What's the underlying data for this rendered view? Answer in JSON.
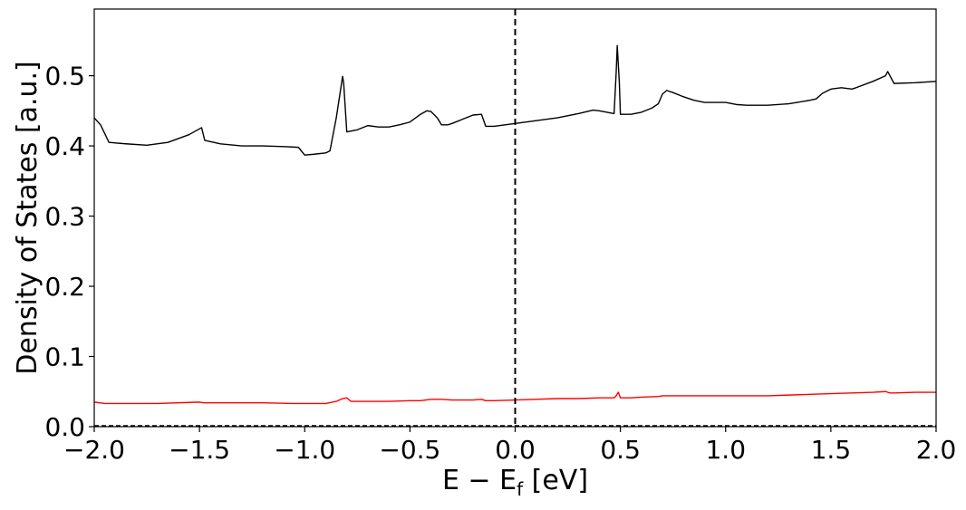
{
  "chart_data": {
    "type": "line",
    "title": "",
    "xlabel": "E − E",
    "xlabel_sub": "f",
    "xlabel_unit": " [eV]",
    "ylabel": "Density of States [a.u.]",
    "xlim": [
      -2.0,
      2.0
    ],
    "ylim": [
      0.0,
      0.595
    ],
    "xticks": [
      -2.0,
      -1.5,
      -1.0,
      -0.5,
      0.0,
      0.5,
      1.0,
      1.5,
      2.0
    ],
    "xtick_labels": [
      "−2.0",
      "−1.5",
      "−1.0",
      "−0.5",
      "0.0",
      "0.5",
      "1.0",
      "1.5",
      "2.0"
    ],
    "yticks": [
      0.0,
      0.1,
      0.2,
      0.3,
      0.4,
      0.5
    ],
    "ytick_labels": [
      "0.0",
      "0.1",
      "0.2",
      "0.3",
      "0.4",
      "0.5"
    ],
    "grid": false,
    "vline": {
      "x": 0.0,
      "style": "dashed",
      "color": "#000000"
    },
    "hline": {
      "y": 0.0,
      "style": "dashed",
      "color": "#000000"
    },
    "series": [
      {
        "color": "#000000",
        "x": [
          -2.0,
          -1.97,
          -1.93,
          -1.85,
          -1.75,
          -1.65,
          -1.55,
          -1.49,
          -1.475,
          -1.4,
          -1.3,
          -1.2,
          -1.1,
          -1.03,
          -1.0,
          -0.96,
          -0.9,
          -0.88,
          -0.85,
          -0.82,
          -0.815,
          -0.8,
          -0.75,
          -0.7,
          -0.65,
          -0.6,
          -0.55,
          -0.5,
          -0.45,
          -0.42,
          -0.4,
          -0.37,
          -0.35,
          -0.32,
          -0.3,
          -0.25,
          -0.2,
          -0.16,
          -0.14,
          -0.1,
          0.0,
          0.1,
          0.2,
          0.3,
          0.37,
          0.4,
          0.47,
          0.48,
          0.485,
          0.495,
          0.5,
          0.55,
          0.6,
          0.65,
          0.68,
          0.7,
          0.72,
          0.75,
          0.8,
          0.85,
          0.9,
          1.0,
          1.05,
          1.1,
          1.2,
          1.3,
          1.4,
          1.43,
          1.46,
          1.5,
          1.55,
          1.6,
          1.62,
          1.7,
          1.76,
          1.77,
          1.8,
          1.9,
          2.0
        ],
        "values": [
          0.44,
          0.43,
          0.405,
          0.403,
          0.401,
          0.405,
          0.416,
          0.426,
          0.408,
          0.403,
          0.4,
          0.4,
          0.399,
          0.398,
          0.387,
          0.388,
          0.39,
          0.393,
          0.44,
          0.499,
          0.49,
          0.42,
          0.423,
          0.429,
          0.427,
          0.427,
          0.43,
          0.434,
          0.445,
          0.45,
          0.449,
          0.44,
          0.43,
          0.43,
          0.432,
          0.438,
          0.444,
          0.445,
          0.428,
          0.428,
          0.432,
          0.436,
          0.44,
          0.446,
          0.451,
          0.45,
          0.446,
          0.505,
          0.543,
          0.49,
          0.445,
          0.445,
          0.448,
          0.454,
          0.46,
          0.474,
          0.479,
          0.476,
          0.47,
          0.465,
          0.462,
          0.462,
          0.459,
          0.458,
          0.458,
          0.46,
          0.465,
          0.467,
          0.475,
          0.481,
          0.483,
          0.481,
          0.483,
          0.492,
          0.5,
          0.506,
          0.489,
          0.49,
          0.492
        ]
      },
      {
        "color": "#ff0000",
        "x": [
          -2.0,
          -1.95,
          -1.9,
          -1.7,
          -1.5,
          -1.48,
          -1.4,
          -1.2,
          -1.05,
          -1.0,
          -0.9,
          -0.85,
          -0.82,
          -0.8,
          -0.78,
          -0.7,
          -0.6,
          -0.5,
          -0.45,
          -0.4,
          -0.35,
          -0.3,
          -0.2,
          -0.16,
          -0.14,
          -0.1,
          0.0,
          0.1,
          0.2,
          0.3,
          0.4,
          0.47,
          0.48,
          0.49,
          0.5,
          0.55,
          0.6,
          0.68,
          0.7,
          0.8,
          0.9,
          1.0,
          1.1,
          1.2,
          1.3,
          1.4,
          1.5,
          1.6,
          1.7,
          1.76,
          1.78,
          1.8,
          1.9,
          2.0
        ],
        "values": [
          0.035,
          0.033,
          0.033,
          0.033,
          0.035,
          0.034,
          0.034,
          0.034,
          0.033,
          0.033,
          0.033,
          0.036,
          0.04,
          0.041,
          0.036,
          0.036,
          0.036,
          0.037,
          0.037,
          0.039,
          0.039,
          0.038,
          0.038,
          0.039,
          0.037,
          0.037,
          0.038,
          0.039,
          0.04,
          0.04,
          0.041,
          0.041,
          0.044,
          0.049,
          0.041,
          0.041,
          0.042,
          0.043,
          0.044,
          0.044,
          0.044,
          0.044,
          0.044,
          0.044,
          0.045,
          0.046,
          0.047,
          0.048,
          0.049,
          0.05,
          0.048,
          0.048,
          0.049,
          0.049
        ]
      }
    ]
  }
}
